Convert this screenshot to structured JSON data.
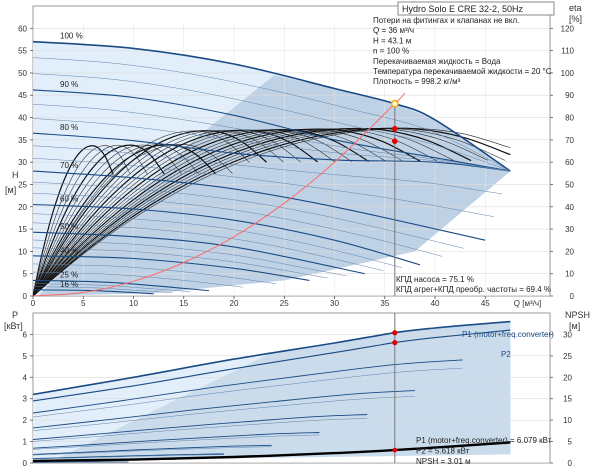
{
  "chart_data": [
    {
      "type": "line",
      "title": "Hydro Solo E CRE 32-2, 50Hz",
      "xlabel": "Q [м³/ч]",
      "ylabel_left": "H",
      "ylabel_left_unit": "[м]",
      "ylabel_right": "eta",
      "ylabel_right_unit": "[%]",
      "xlim": [
        0,
        50
      ],
      "ylim": [
        0,
        65
      ],
      "ylim_right": [
        0,
        130
      ],
      "x_ticks": [
        0,
        5,
        10,
        15,
        20,
        25,
        30,
        35,
        40,
        45,
        "Q [м³/ч]"
      ],
      "y_ticks": [
        0,
        5,
        10,
        15,
        20,
        25,
        30,
        35,
        40,
        45,
        50,
        55,
        60
      ],
      "y_ticks_right": [
        0,
        10,
        20,
        30,
        40,
        50,
        60,
        70,
        80,
        90,
        100,
        110,
        120
      ],
      "info_lines": [
        "Потери на фитингах и клапанах не вкл.",
        "Q = 36 м³/ч",
        "H = 43.1 м",
        "n = 100 %",
        "Перекачиваемая жидкость = Вода",
        "Температура перекачиваемой жидкости = 20 °C",
        "Плотность = 998.2 кг/м³"
      ],
      "efficiency_lines": [
        "КПД насоса = 75.1 %",
        "КПД агрег+КПД преобр. частоты = 69.4 %"
      ],
      "speed_curves": [
        {
          "name": "100 %",
          "x": [
            0,
            10,
            20,
            30,
            36,
            40,
            47.5
          ],
          "y": [
            57,
            55.5,
            52,
            46.5,
            43.1,
            39.5,
            28
          ]
        },
        {
          "name": "90 %",
          "x": [
            0,
            10,
            20,
            30,
            40,
            47.5
          ],
          "y": [
            46.2,
            44.5,
            40.5,
            35,
            31,
            28
          ]
        },
        {
          "name": "80 %",
          "x": [
            0,
            10,
            20,
            30,
            40,
            47.5
          ],
          "y": [
            36.5,
            34.8,
            32,
            30.5,
            30,
            28
          ]
        },
        {
          "name": "70 %",
          "x": [
            0,
            10,
            20,
            30,
            45
          ],
          "y": [
            28,
            26.5,
            24,
            20,
            12.5
          ]
        },
        {
          "name": "60 %",
          "x": [
            0,
            10,
            20,
            30,
            38.5
          ],
          "y": [
            20.5,
            19.5,
            17,
            12.5,
            7
          ]
        },
        {
          "name": "50 %",
          "x": [
            0,
            10,
            20,
            33
          ],
          "y": [
            14.3,
            13.3,
            11,
            5
          ]
        },
        {
          "name": "40 %",
          "x": [
            0,
            10,
            20,
            27.5
          ],
          "y": [
            9,
            8.4,
            6.2,
            3.5
          ]
        },
        {
          "name": "25 %",
          "x": [
            0,
            8,
            17.5
          ],
          "y": [
            3.5,
            3,
            1.2
          ]
        },
        {
          "name": "16 %",
          "x": [
            0,
            6,
            12
          ],
          "y": [
            1.4,
            1.2,
            0.5
          ]
        }
      ],
      "system_curve": {
        "x": [
          0,
          5,
          10,
          15,
          20,
          25,
          30,
          36,
          37
        ],
        "y": [
          0,
          0.8,
          3.3,
          7.5,
          13.3,
          20.8,
          30,
          43.1,
          45.5
        ]
      },
      "operating_points": [
        {
          "x": 36,
          "y": 43.1,
          "kind": "duty"
        },
        {
          "x": 36,
          "y": 37.5,
          "kind": "efficiency"
        },
        {
          "x": 36,
          "y": 34.7,
          "kind": "efficiency"
        }
      ]
    },
    {
      "type": "line",
      "xlim": [
        0,
        50
      ],
      "ylabel_left": "P",
      "ylabel_left_unit": "[кВт]",
      "ylabel_right": "NPSH",
      "ylabel_right_unit": "[м]",
      "ylim": [
        0,
        7
      ],
      "ylim_right": [
        0,
        35
      ],
      "y_ticks": [
        0,
        1,
        2,
        3,
        4,
        5,
        6
      ],
      "y_ticks_right": [
        0,
        5,
        10,
        15,
        20,
        25,
        30
      ],
      "series": [
        {
          "name": "P1 (motor+freq.converter)",
          "x": [
            0,
            10,
            20,
            30,
            36,
            40,
            47.5
          ],
          "y": [
            3.2,
            4.0,
            4.85,
            5.6,
            6.08,
            6.3,
            6.6
          ]
        },
        {
          "name": "P2",
          "x": [
            0,
            10,
            20,
            30,
            36,
            40,
            47.5
          ],
          "y": [
            2.9,
            3.6,
            4.4,
            5.15,
            5.62,
            5.85,
            6.2
          ]
        }
      ],
      "npsh_curve": {
        "x": [
          0,
          10,
          20,
          30,
          36,
          47.5
        ],
        "y_m": [
          0.5,
          0.8,
          1.4,
          2.3,
          3.0,
          4.8
        ]
      },
      "operating_points": [
        {
          "x": 36,
          "y": 6.079
        },
        {
          "x": 36,
          "y": 5.618
        }
      ],
      "readout_lines": [
        "P1 (motor+freq.converter) = 6.079 кВт",
        "P2 = 5.618 кВт",
        "NPSH = 3.01 м"
      ]
    }
  ],
  "colors": {
    "curve_dark": "#1a4b85",
    "area_light": "#e2eefa",
    "area_dark": "#b8cde0",
    "system_curve": "#ff6a6a",
    "point_red": "#e30000",
    "point_duty": "#ffa500",
    "axis": "#555555"
  }
}
